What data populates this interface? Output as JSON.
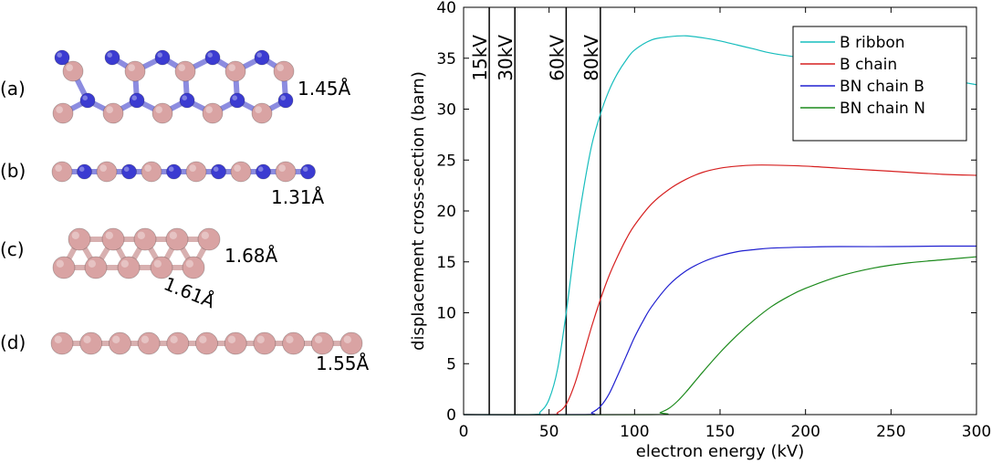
{
  "left_panel": {
    "structures": [
      {
        "label": "(a)",
        "bond_label": "1.45Å"
      },
      {
        "label": "(b)",
        "bond_label": "1.31Å"
      },
      {
        "label": "(c)",
        "bond_label": "1.68Å",
        "bond_label_2": "1.61Å"
      },
      {
        "label": "(d)",
        "bond_label": "1.55Å"
      }
    ],
    "colors": {
      "boron_atom": "#d9a3a3",
      "nitrogen_atom": "#3b3bd1",
      "bn_bond": "#8c8ce0",
      "bb_bond": "#d8b0b0"
    }
  },
  "chart_data": {
    "type": "line",
    "title": "",
    "xlabel": "electron energy (kV)",
    "ylabel": "displacement cross-section (barn)",
    "xlim": [
      0,
      300
    ],
    "ylim": [
      0,
      40
    ],
    "xticks": [
      0,
      50,
      100,
      150,
      200,
      250,
      300
    ],
    "yticks": [
      0,
      5,
      10,
      15,
      20,
      25,
      30,
      35,
      40
    ],
    "grid": false,
    "legend_position": "top-right",
    "vertical_lines": [
      {
        "x": 15,
        "label": "15kV"
      },
      {
        "x": 30,
        "label": "30kV"
      },
      {
        "x": 60,
        "label": "60kV"
      },
      {
        "x": 80,
        "label": "80kV"
      }
    ],
    "series": [
      {
        "name": "B ribbon",
        "color": "#17bdbd",
        "x": [
          40,
          45,
          50,
          55,
          60,
          65,
          70,
          75,
          80,
          85,
          90,
          95,
          100,
          110,
          120,
          130,
          140,
          150,
          160,
          170,
          180,
          200,
          220,
          240,
          260,
          280,
          300
        ],
        "y": [
          0,
          0.3,
          1.5,
          4.5,
          10,
          16.5,
          22,
          26.5,
          29.5,
          31.8,
          33.5,
          34.8,
          35.8,
          36.8,
          37.1,
          37.2,
          37.0,
          36.7,
          36.3,
          35.9,
          35.5,
          35.0,
          34.6,
          34.1,
          33.6,
          33.0,
          32.4
        ]
      },
      {
        "name": "B chain",
        "color": "#d62020",
        "x": [
          50,
          55,
          60,
          65,
          70,
          75,
          80,
          85,
          90,
          95,
          100,
          110,
          120,
          130,
          140,
          150,
          160,
          170,
          180,
          200,
          220,
          250,
          280,
          300
        ],
        "y": [
          0,
          0.2,
          1,
          3,
          5.8,
          8.7,
          11.3,
          13.6,
          15.5,
          17.2,
          18.6,
          20.7,
          22.1,
          23.1,
          23.8,
          24.2,
          24.4,
          24.5,
          24.5,
          24.4,
          24.2,
          23.9,
          23.6,
          23.5
        ]
      },
      {
        "name": "BN chain B",
        "color": "#2020d0",
        "x": [
          70,
          75,
          80,
          85,
          90,
          95,
          100,
          105,
          110,
          120,
          130,
          140,
          150,
          160,
          170,
          180,
          200,
          220,
          250,
          280,
          300
        ],
        "y": [
          0,
          0.2,
          0.8,
          2,
          3.8,
          5.7,
          7.6,
          9.2,
          10.6,
          12.7,
          14.1,
          15.0,
          15.6,
          16.0,
          16.2,
          16.35,
          16.45,
          16.5,
          16.5,
          16.55,
          16.55
        ]
      },
      {
        "name": "BN chain N",
        "color": "#1c8a1c",
        "x": [
          110,
          115,
          120,
          125,
          130,
          135,
          140,
          150,
          160,
          170,
          180,
          190,
          200,
          220,
          240,
          260,
          280,
          300
        ],
        "y": [
          0,
          0.2,
          0.6,
          1.3,
          2.2,
          3.2,
          4.2,
          6.1,
          7.8,
          9.3,
          10.6,
          11.6,
          12.4,
          13.6,
          14.4,
          14.9,
          15.2,
          15.5
        ]
      }
    ]
  }
}
